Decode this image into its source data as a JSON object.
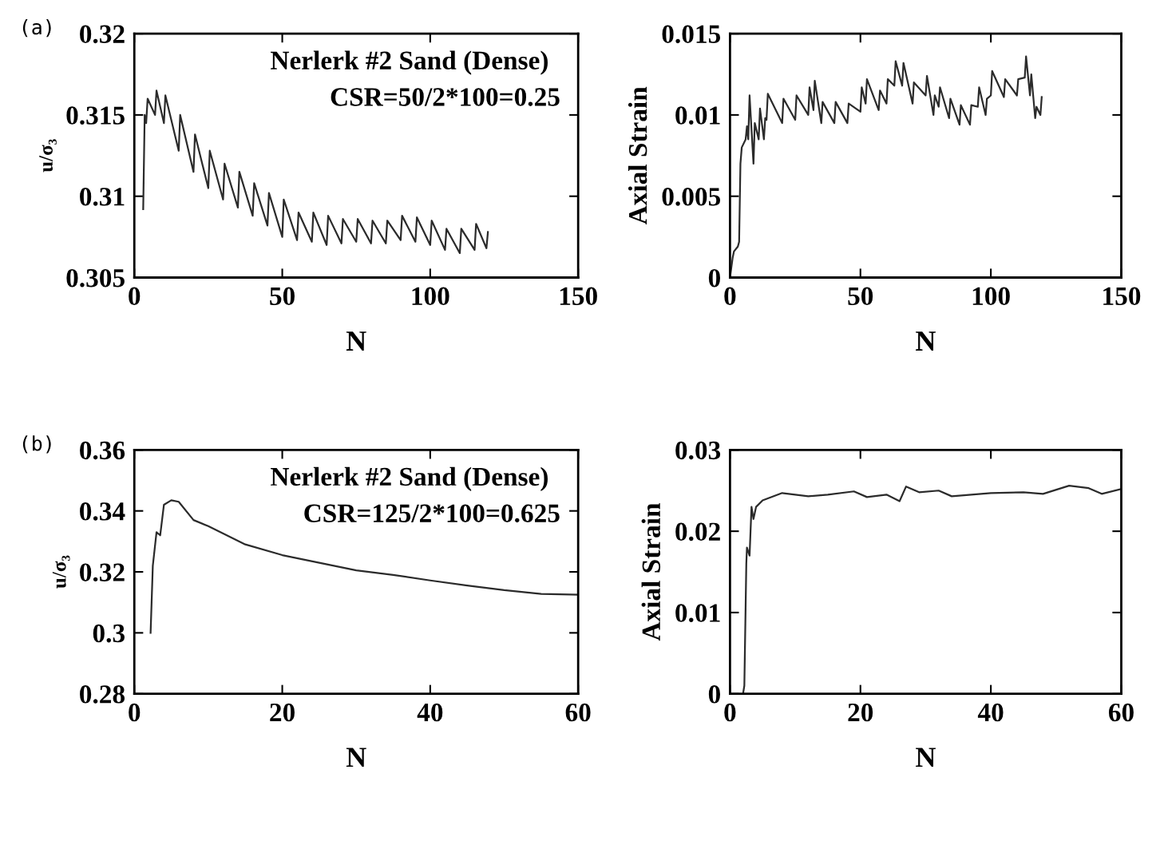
{
  "chart_data": [
    {
      "type": "line",
      "xlabel": "N",
      "ylabel": "u/σ₃",
      "xlim": [
        0,
        150
      ],
      "xticks": [
        0,
        50,
        100,
        150
      ],
      "ylim": [
        0.305,
        0.32
      ],
      "yticks": [
        0.305,
        0.31,
        0.315,
        0.32
      ],
      "grid": false,
      "legend": false,
      "annotations": [
        "(a)",
        "Nerlerk #2 Sand (Dense)",
        "CSR=50/2*100=0.25"
      ],
      "series": [
        {
          "color": "#2b2b2b",
          "x": [
            3,
            3.5,
            4,
            4.5,
            7,
            7.5,
            10,
            10.5,
            15,
            15.5,
            20,
            20.5,
            25,
            25.5,
            30,
            30.5,
            35,
            35.5,
            40,
            40.5,
            45,
            45.5,
            50,
            50.5,
            55,
            55.5,
            60,
            60.5,
            65,
            65.5,
            70,
            70.5,
            75,
            75.5,
            80,
            80.5,
            85,
            85.5,
            90,
            90.5,
            95,
            95.5,
            100,
            100.5,
            105,
            105.5,
            110,
            110.5,
            115,
            115.5,
            119,
            119.5
          ],
          "values": [
            0.3092,
            0.315,
            0.3145,
            0.316,
            0.315,
            0.3165,
            0.3145,
            0.3162,
            0.3128,
            0.315,
            0.3115,
            0.3138,
            0.3105,
            0.3128,
            0.3098,
            0.312,
            0.3093,
            0.3115,
            0.3088,
            0.3108,
            0.3082,
            0.3102,
            0.3075,
            0.3098,
            0.3073,
            0.309,
            0.3072,
            0.309,
            0.307,
            0.3088,
            0.3071,
            0.3086,
            0.3072,
            0.3086,
            0.3071,
            0.3085,
            0.3071,
            0.3085,
            0.3073,
            0.3088,
            0.3072,
            0.3087,
            0.307,
            0.3085,
            0.3067,
            0.308,
            0.3065,
            0.308,
            0.3067,
            0.3083,
            0.3068,
            0.3078
          ]
        }
      ]
    },
    {
      "type": "line",
      "xlabel": "N",
      "ylabel": "Axial Strain",
      "xlim": [
        0,
        150
      ],
      "xticks": [
        0,
        50,
        100,
        150
      ],
      "ylim": [
        0,
        0.015
      ],
      "yticks": [
        0,
        0.005,
        0.01,
        0.015
      ],
      "grid": false,
      "legend": false,
      "series": [
        {
          "color": "#2b2b2b",
          "x": [
            0,
            1,
            1.5,
            3,
            3.5,
            4,
            4.5,
            6,
            6.5,
            7,
            7.5,
            9,
            9.5,
            11,
            11.5,
            13,
            13.5,
            14,
            14.5,
            20,
            20.5,
            25,
            25.5,
            30,
            30.5,
            32,
            32.5,
            35,
            35.5,
            40,
            40.5,
            45,
            45.5,
            50,
            50.5,
            52,
            52.5,
            57,
            57.5,
            60,
            60.5,
            63,
            63.5,
            66,
            66.5,
            70,
            70.5,
            75,
            75.5,
            78,
            78.5,
            80,
            80.5,
            84,
            84.5,
            88,
            88.5,
            92,
            92.5,
            95,
            95.5,
            98,
            98.5,
            100,
            100.5,
            105,
            105.5,
            110,
            110.5,
            113,
            113.5,
            115,
            115.5,
            117,
            117.5,
            119,
            119.5
          ],
          "values": [
            0,
            0.0012,
            0.0016,
            0.0019,
            0.0022,
            0.007,
            0.008,
            0.0085,
            0.0093,
            0.0085,
            0.0112,
            0.007,
            0.0095,
            0.0085,
            0.0104,
            0.0085,
            0.0098,
            0.0097,
            0.0113,
            0.0095,
            0.011,
            0.0097,
            0.0112,
            0.01,
            0.0117,
            0.0103,
            0.0121,
            0.0095,
            0.0108,
            0.0095,
            0.0108,
            0.0095,
            0.0107,
            0.0102,
            0.0117,
            0.0107,
            0.0122,
            0.0103,
            0.0115,
            0.0107,
            0.0122,
            0.0118,
            0.0133,
            0.0118,
            0.0132,
            0.0107,
            0.012,
            0.0112,
            0.0124,
            0.01,
            0.0112,
            0.0105,
            0.0117,
            0.0098,
            0.011,
            0.0094,
            0.0106,
            0.0094,
            0.0106,
            0.0105,
            0.0117,
            0.01,
            0.011,
            0.0112,
            0.0127,
            0.0111,
            0.0122,
            0.0112,
            0.0122,
            0.0123,
            0.0136,
            0.0112,
            0.0125,
            0.0098,
            0.0105,
            0.01,
            0.0111
          ]
        }
      ]
    },
    {
      "type": "line",
      "xlabel": "N",
      "ylabel": "u/σ₃",
      "xlim": [
        0,
        60
      ],
      "xticks": [
        0,
        20,
        40,
        60
      ],
      "ylim": [
        0.28,
        0.36
      ],
      "yticks": [
        0.28,
        0.3,
        0.32,
        0.34,
        0.36
      ],
      "grid": false,
      "legend": false,
      "annotations": [
        "(b)",
        "Nerlerk #2 Sand (Dense)",
        "CSR=125/2*100=0.625"
      ],
      "series": [
        {
          "color": "#2b2b2b",
          "x": [
            2.2,
            2.5,
            3,
            3.5,
            4,
            5,
            6,
            8,
            10,
            15,
            20,
            25,
            30,
            35,
            40,
            45,
            50,
            55,
            60
          ],
          "values": [
            0.3,
            0.322,
            0.333,
            0.332,
            0.342,
            0.3435,
            0.343,
            0.337,
            0.335,
            0.329,
            0.3255,
            0.323,
            0.3205,
            0.319,
            0.3172,
            0.3155,
            0.314,
            0.3128,
            0.3125
          ]
        }
      ]
    },
    {
      "type": "line",
      "xlabel": "N",
      "ylabel": "Axial Strain",
      "xlim": [
        0,
        60
      ],
      "xticks": [
        0,
        20,
        40,
        60
      ],
      "ylim": [
        0,
        0.03
      ],
      "yticks": [
        0,
        0.01,
        0.02,
        0.03
      ],
      "grid": false,
      "legend": false,
      "series": [
        {
          "color": "#2b2b2b",
          "x": [
            2,
            2.2,
            2.5,
            2.6,
            3,
            3.3,
            3.6,
            4,
            5,
            8,
            12,
            15,
            19,
            21,
            24,
            26,
            27,
            29,
            32,
            34,
            40,
            45,
            48,
            52,
            55,
            57,
            60
          ],
          "values": [
            0,
            0.001,
            0.016,
            0.018,
            0.017,
            0.023,
            0.0215,
            0.023,
            0.0238,
            0.0247,
            0.0243,
            0.0245,
            0.0249,
            0.0242,
            0.0245,
            0.0237,
            0.0255,
            0.0248,
            0.025,
            0.0243,
            0.0247,
            0.0248,
            0.0246,
            0.0256,
            0.0253,
            0.0246,
            0.0252
          ]
        }
      ]
    }
  ]
}
